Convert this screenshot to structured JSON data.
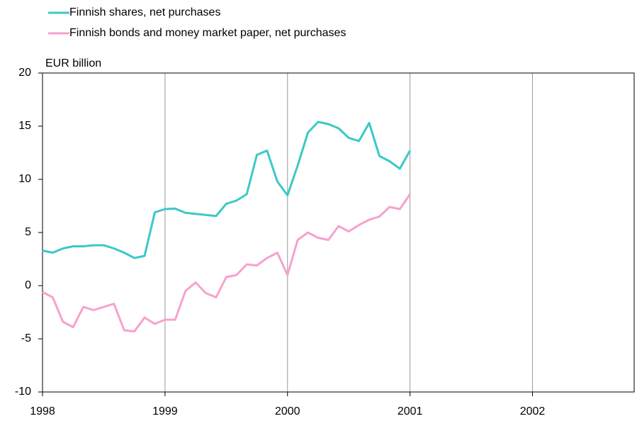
{
  "chart_data": {
    "type": "line",
    "y_label": "EUR billion",
    "x": [
      1998,
      1998.083,
      1998.167,
      1998.25,
      1998.333,
      1998.417,
      1998.5,
      1998.583,
      1998.667,
      1998.75,
      1998.833,
      1998.917,
      1999,
      1999.083,
      1999.167,
      1999.25,
      1999.333,
      1999.417,
      1999.5,
      1999.583,
      1999.667,
      1999.75,
      1999.833,
      1999.917,
      2000,
      2000.083,
      2000.167,
      2000.25,
      2000.333,
      2000.417,
      2000.5,
      2000.583,
      2000.667,
      2000.75,
      2000.833,
      2000.917,
      2001
    ],
    "series": [
      {
        "name": "Finnish shares, net purchases",
        "color": "#3cc8c8",
        "values": [
          3.3,
          3.1,
          3.5,
          3.7,
          3.7,
          3.8,
          3.8,
          3.5,
          3.1,
          2.6,
          2.8,
          6.9,
          7.2,
          7.25,
          6.85,
          6.75,
          6.65,
          6.55,
          7.7,
          8.0,
          8.6,
          12.3,
          12.7,
          9.8,
          8.5,
          11.3,
          14.4,
          15.4,
          15.2,
          14.8,
          13.9,
          13.6,
          15.3,
          12.2,
          11.7,
          11.0,
          12.7
        ]
      },
      {
        "name": "Finnish bonds and money market paper, net purchases",
        "color": "#f7a1cf",
        "values": [
          -0.6,
          -1.1,
          -3.4,
          -3.9,
          -2.0,
          -2.3,
          -2.0,
          -1.7,
          -4.2,
          -4.3,
          -3.0,
          -3.6,
          -3.2,
          -3.2,
          -0.5,
          0.3,
          -0.7,
          -1.1,
          0.8,
          1.0,
          2.0,
          1.9,
          2.6,
          3.1,
          1.0,
          4.3,
          5.0,
          4.5,
          4.3,
          5.6,
          5.1,
          5.7,
          6.2,
          6.5,
          7.4,
          7.2,
          8.6
        ]
      }
    ],
    "xlim": [
      1998,
      2002.83
    ],
    "xticks": [
      1998,
      1999,
      2000,
      2001,
      2002
    ],
    "ylim": [
      -10,
      20
    ],
    "yticks": [
      -10,
      -5,
      0,
      5,
      10,
      15,
      20
    ],
    "grid": "x",
    "legend": "top-left"
  }
}
